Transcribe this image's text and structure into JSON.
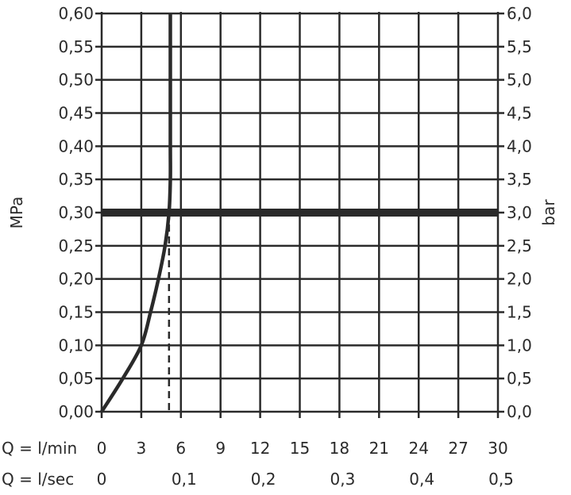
{
  "chart_data": {
    "type": "line",
    "left_axis": {
      "label": "MPa",
      "range": [
        0,
        0.6
      ],
      "ticks": [
        "0,00",
        "0,05",
        "0,10",
        "0,15",
        "0,20",
        "0,25",
        "0,30",
        "0,35",
        "0,40",
        "0,45",
        "0,50",
        "0,55",
        "0,60"
      ]
    },
    "right_axis": {
      "label": "bar",
      "range": [
        0,
        6
      ],
      "ticks": [
        "0,0",
        "0,5",
        "1,0",
        "1,5",
        "2,0",
        "2,5",
        "3,0",
        "3,5",
        "4,0",
        "4,5",
        "5,0",
        "5,5",
        "6,0"
      ]
    },
    "x_axis_lmin": {
      "label": "Q = l/min",
      "range": [
        0,
        30
      ],
      "ticks": [
        "0",
        "3",
        "6",
        "9",
        "12",
        "15",
        "18",
        "21",
        "24",
        "27",
        "30"
      ]
    },
    "x_axis_lsec": {
      "label": "Q = l/sec",
      "ticks": [
        "0",
        "0,1",
        "0,2",
        "0,3",
        "0,4",
        "0,5"
      ]
    },
    "grid": true,
    "series": [
      {
        "points": [
          [
            0,
            0
          ],
          [
            1.6,
            0.05
          ],
          [
            3.0,
            0.1
          ],
          [
            3.7,
            0.15
          ],
          [
            4.3,
            0.2
          ],
          [
            4.8,
            0.25
          ],
          [
            5.1,
            0.3
          ],
          [
            5.2,
            0.35
          ],
          [
            5.2,
            0.4
          ],
          [
            5.2,
            0.5
          ],
          [
            5.2,
            0.6
          ]
        ]
      }
    ],
    "reference_line_mpa": 0.3,
    "dashed_marker_lmin": 5.1,
    "colors": {
      "line": "#2a2a2a",
      "background": "#ffffff"
    }
  }
}
